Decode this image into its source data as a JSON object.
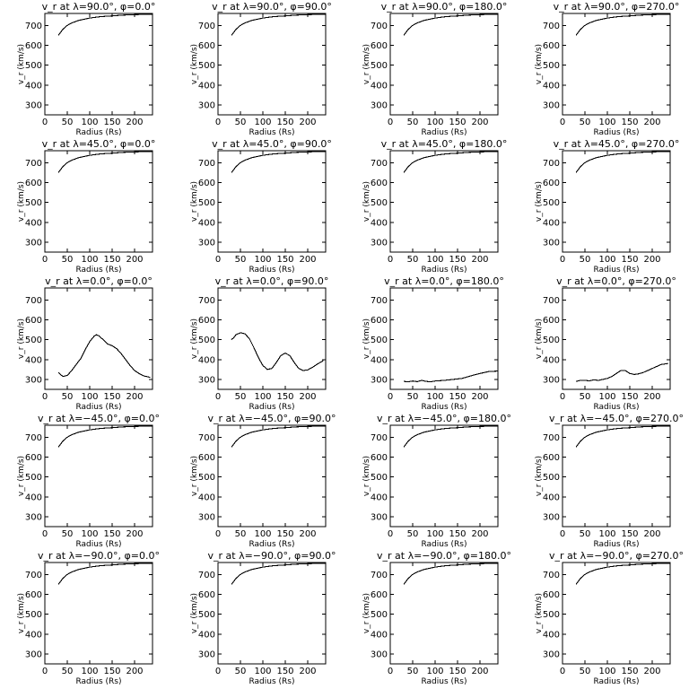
{
  "chart_data": [
    {
      "type": "line",
      "title": "v_r at λ=90.0°, φ=0.0°",
      "xlabel": "Radius (Rs)",
      "ylabel": "v_r (km/s)",
      "xlim": [
        0,
        240
      ],
      "ylim": [
        250,
        760
      ],
      "xticks": [
        0,
        50,
        100,
        150,
        200
      ],
      "yticks": [
        300,
        400,
        500,
        600,
        700
      ],
      "grid": false,
      "x": [
        30,
        40,
        50,
        60,
        75,
        100,
        125,
        150,
        175,
        200,
        240
      ],
      "y": [
        650,
        680,
        700,
        712,
        725,
        737,
        744,
        748,
        752,
        754,
        756
      ]
    },
    {
      "type": "line",
      "title": "v_r at λ=90.0°, φ=90.0°",
      "xlabel": "Radius (Rs)",
      "ylabel": "v_r (km/s)",
      "xlim": [
        0,
        240
      ],
      "ylim": [
        250,
        760
      ],
      "xticks": [
        0,
        50,
        100,
        150,
        200
      ],
      "yticks": [
        300,
        400,
        500,
        600,
        700
      ],
      "grid": false,
      "x": [
        30,
        40,
        50,
        60,
        75,
        100,
        125,
        150,
        175,
        200,
        240
      ],
      "y": [
        650,
        680,
        700,
        712,
        725,
        737,
        744,
        748,
        752,
        754,
        756
      ]
    },
    {
      "type": "line",
      "title": "v_r at λ=90.0°, φ=180.0°",
      "xlabel": "Radius (Rs)",
      "ylabel": "v_r (km/s)",
      "xlim": [
        0,
        240
      ],
      "ylim": [
        250,
        760
      ],
      "xticks": [
        0,
        50,
        100,
        150,
        200
      ],
      "yticks": [
        300,
        400,
        500,
        600,
        700
      ],
      "grid": false,
      "x": [
        30,
        40,
        50,
        60,
        75,
        100,
        125,
        150,
        175,
        200,
        240
      ],
      "y": [
        650,
        680,
        700,
        712,
        725,
        737,
        744,
        748,
        752,
        754,
        756
      ]
    },
    {
      "type": "line",
      "title": "v_r at λ=90.0°, φ=270.0°",
      "xlabel": "Radius (Rs)",
      "ylabel": "v_r (km/s)",
      "xlim": [
        0,
        240
      ],
      "ylim": [
        250,
        760
      ],
      "xticks": [
        0,
        50,
        100,
        150,
        200
      ],
      "yticks": [
        300,
        400,
        500,
        600,
        700
      ],
      "grid": false,
      "x": [
        30,
        40,
        50,
        60,
        75,
        100,
        125,
        150,
        175,
        200,
        240
      ],
      "y": [
        650,
        680,
        700,
        712,
        725,
        737,
        744,
        748,
        752,
        754,
        756
      ]
    },
    {
      "type": "line",
      "title": "v_r at λ=45.0°, φ=0.0°",
      "xlabel": "Radius (Rs)",
      "ylabel": "v_r (km/s)",
      "xlim": [
        0,
        240
      ],
      "ylim": [
        250,
        760
      ],
      "xticks": [
        0,
        50,
        100,
        150,
        200
      ],
      "yticks": [
        300,
        400,
        500,
        600,
        700
      ],
      "grid": false,
      "x": [
        30,
        40,
        50,
        60,
        75,
        100,
        125,
        150,
        175,
        200,
        240
      ],
      "y": [
        650,
        680,
        700,
        712,
        725,
        737,
        744,
        748,
        752,
        754,
        756
      ]
    },
    {
      "type": "line",
      "title": "v_r at λ=45.0°, φ=90.0°",
      "xlabel": "Radius (Rs)",
      "ylabel": "v_r (km/s)",
      "xlim": [
        0,
        240
      ],
      "ylim": [
        250,
        760
      ],
      "xticks": [
        0,
        50,
        100,
        150,
        200
      ],
      "yticks": [
        300,
        400,
        500,
        600,
        700
      ],
      "grid": false,
      "x": [
        30,
        40,
        50,
        60,
        75,
        100,
        125,
        150,
        175,
        200,
        240
      ],
      "y": [
        650,
        680,
        700,
        712,
        725,
        737,
        744,
        748,
        752,
        754,
        756
      ]
    },
    {
      "type": "line",
      "title": "v_r at λ=45.0°, φ=180.0°",
      "xlabel": "Radius (Rs)",
      "ylabel": "v_r (km/s)",
      "xlim": [
        0,
        240
      ],
      "ylim": [
        250,
        760
      ],
      "xticks": [
        0,
        50,
        100,
        150,
        200
      ],
      "yticks": [
        300,
        400,
        500,
        600,
        700
      ],
      "grid": false,
      "x": [
        30,
        40,
        50,
        60,
        75,
        100,
        125,
        150,
        175,
        200,
        240
      ],
      "y": [
        650,
        680,
        700,
        712,
        725,
        737,
        744,
        748,
        752,
        754,
        756
      ]
    },
    {
      "type": "line",
      "title": "v_r at λ=45.0°, φ=270.0°",
      "xlabel": "Radius (Rs)",
      "ylabel": "v_r (km/s)",
      "xlim": [
        0,
        240
      ],
      "ylim": [
        250,
        760
      ],
      "xticks": [
        0,
        50,
        100,
        150,
        200
      ],
      "yticks": [
        300,
        400,
        500,
        600,
        700
      ],
      "grid": false,
      "x": [
        30,
        40,
        50,
        60,
        75,
        100,
        125,
        150,
        175,
        200,
        240
      ],
      "y": [
        650,
        680,
        700,
        712,
        725,
        737,
        744,
        748,
        752,
        754,
        756
      ]
    },
    {
      "type": "line",
      "title": "v_r at λ=0.0°, φ=0.0°",
      "xlabel": "Radius (Rs)",
      "ylabel": "v_r (km/s)",
      "xlim": [
        0,
        240
      ],
      "ylim": [
        250,
        760
      ],
      "xticks": [
        0,
        50,
        100,
        150,
        200
      ],
      "yticks": [
        300,
        400,
        500,
        600,
        700
      ],
      "grid": false,
      "x": [
        30,
        40,
        50,
        60,
        70,
        80,
        90,
        100,
        110,
        115,
        120,
        130,
        140,
        150,
        160,
        170,
        180,
        190,
        200,
        210,
        220,
        235
      ],
      "y": [
        335,
        315,
        320,
        345,
        375,
        405,
        450,
        490,
        518,
        525,
        520,
        500,
        478,
        470,
        455,
        430,
        400,
        370,
        345,
        330,
        318,
        310
      ]
    },
    {
      "type": "line",
      "title": "v_r at λ=0.0°, φ=90.0°",
      "xlabel": "Radius (Rs)",
      "ylabel": "v_r (km/s)",
      "xlim": [
        0,
        240
      ],
      "ylim": [
        250,
        760
      ],
      "xticks": [
        0,
        50,
        100,
        150,
        200
      ],
      "yticks": [
        300,
        400,
        500,
        600,
        700
      ],
      "grid": false,
      "x": [
        30,
        35,
        40,
        50,
        60,
        70,
        80,
        90,
        100,
        110,
        120,
        130,
        140,
        150,
        160,
        170,
        180,
        190,
        200,
        210,
        220,
        235
      ],
      "y": [
        500,
        510,
        525,
        535,
        530,
        505,
        460,
        410,
        370,
        350,
        355,
        385,
        420,
        432,
        420,
        385,
        355,
        345,
        348,
        360,
        375,
        395
      ]
    },
    {
      "type": "line",
      "title": "v_r at λ=0.0°, φ=180.0°",
      "xlabel": "Radius (Rs)",
      "ylabel": "v_r (km/s)",
      "xlim": [
        0,
        240
      ],
      "ylim": [
        250,
        760
      ],
      "xticks": [
        0,
        50,
        100,
        150,
        200
      ],
      "yticks": [
        300,
        400,
        500,
        600,
        700
      ],
      "grid": false,
      "x": [
        30,
        40,
        50,
        60,
        70,
        80,
        90,
        100,
        120,
        140,
        160,
        180,
        200,
        220,
        240
      ],
      "y": [
        290,
        288,
        292,
        289,
        295,
        290,
        288,
        292,
        295,
        300,
        305,
        318,
        330,
        340,
        342
      ]
    },
    {
      "type": "line",
      "title": "v_r at λ=0.0°, φ=270.0°",
      "xlabel": "Radius (Rs)",
      "ylabel": "v_r (km/s)",
      "xlim": [
        0,
        240
      ],
      "ylim": [
        250,
        760
      ],
      "xticks": [
        0,
        50,
        100,
        150,
        200
      ],
      "yticks": [
        300,
        400,
        500,
        600,
        700
      ],
      "grid": false,
      "x": [
        30,
        40,
        50,
        60,
        70,
        80,
        90,
        100,
        110,
        120,
        130,
        140,
        150,
        160,
        170,
        180,
        190,
        200,
        210,
        220,
        235
      ],
      "y": [
        290,
        295,
        295,
        293,
        298,
        295,
        300,
        305,
        315,
        330,
        345,
        345,
        330,
        325,
        328,
        335,
        345,
        355,
        365,
        375,
        380
      ]
    },
    {
      "type": "line",
      "title": "v_r at λ=−45.0°, φ=0.0°",
      "xlabel": "Radius (Rs)",
      "ylabel": "v_r (km/s)",
      "xlim": [
        0,
        240
      ],
      "ylim": [
        250,
        760
      ],
      "xticks": [
        0,
        50,
        100,
        150,
        200
      ],
      "yticks": [
        300,
        400,
        500,
        600,
        700
      ],
      "grid": false,
      "x": [
        30,
        40,
        50,
        60,
        75,
        100,
        125,
        150,
        175,
        200,
        240
      ],
      "y": [
        650,
        680,
        700,
        712,
        725,
        737,
        744,
        748,
        752,
        754,
        756
      ]
    },
    {
      "type": "line",
      "title": "v_r at λ=−45.0°, φ=90.0°",
      "xlabel": "Radius (Rs)",
      "ylabel": "v_r (km/s)",
      "xlim": [
        0,
        240
      ],
      "ylim": [
        250,
        760
      ],
      "xticks": [
        0,
        50,
        100,
        150,
        200
      ],
      "yticks": [
        300,
        400,
        500,
        600,
        700
      ],
      "grid": false,
      "x": [
        30,
        40,
        50,
        60,
        75,
        100,
        125,
        150,
        175,
        200,
        240
      ],
      "y": [
        650,
        680,
        700,
        712,
        725,
        737,
        744,
        748,
        752,
        754,
        756
      ]
    },
    {
      "type": "line",
      "title": "v_r at λ=−45.0°, φ=180.0°",
      "xlabel": "Radius (Rs)",
      "ylabel": "v_r (km/s)",
      "xlim": [
        0,
        240
      ],
      "ylim": [
        250,
        760
      ],
      "xticks": [
        0,
        50,
        100,
        150,
        200
      ],
      "yticks": [
        300,
        400,
        500,
        600,
        700
      ],
      "grid": false,
      "x": [
        30,
        40,
        50,
        60,
        75,
        100,
        125,
        150,
        175,
        200,
        240
      ],
      "y": [
        650,
        680,
        700,
        712,
        725,
        737,
        744,
        748,
        752,
        754,
        756
      ]
    },
    {
      "type": "line",
      "title": "v_r at λ=−45.0°, φ=270.0°",
      "xlabel": "Radius (Rs)",
      "ylabel": "v_r (km/s)",
      "xlim": [
        0,
        240
      ],
      "ylim": [
        250,
        760
      ],
      "xticks": [
        0,
        50,
        100,
        150,
        200
      ],
      "yticks": [
        300,
        400,
        500,
        600,
        700
      ],
      "grid": false,
      "x": [
        30,
        40,
        50,
        60,
        75,
        100,
        125,
        150,
        175,
        200,
        240
      ],
      "y": [
        650,
        680,
        700,
        712,
        725,
        737,
        744,
        748,
        752,
        754,
        756
      ]
    },
    {
      "type": "line",
      "title": "v_r at λ=−90.0°, φ=0.0°",
      "xlabel": "Radius (Rs)",
      "ylabel": "v_r (km/s)",
      "xlim": [
        0,
        240
      ],
      "ylim": [
        250,
        760
      ],
      "xticks": [
        0,
        50,
        100,
        150,
        200
      ],
      "yticks": [
        300,
        400,
        500,
        600,
        700
      ],
      "grid": false,
      "x": [
        30,
        40,
        50,
        60,
        75,
        100,
        125,
        150,
        175,
        200,
        240
      ],
      "y": [
        650,
        680,
        700,
        712,
        725,
        737,
        744,
        748,
        752,
        754,
        756
      ]
    },
    {
      "type": "line",
      "title": "v_r at λ=−90.0°, φ=90.0°",
      "xlabel": "Radius (Rs)",
      "ylabel": "v_r (km/s)",
      "xlim": [
        0,
        240
      ],
      "ylim": [
        250,
        760
      ],
      "xticks": [
        0,
        50,
        100,
        150,
        200
      ],
      "yticks": [
        300,
        400,
        500,
        600,
        700
      ],
      "grid": false,
      "x": [
        30,
        40,
        50,
        60,
        75,
        100,
        125,
        150,
        175,
        200,
        240
      ],
      "y": [
        650,
        680,
        700,
        712,
        725,
        737,
        744,
        748,
        752,
        754,
        756
      ]
    },
    {
      "type": "line",
      "title": "v_r at λ=−90.0°, φ=180.0°",
      "xlabel": "Radius (Rs)",
      "ylabel": "v_r (km/s)",
      "xlim": [
        0,
        240
      ],
      "ylim": [
        250,
        760
      ],
      "xticks": [
        0,
        50,
        100,
        150,
        200
      ],
      "yticks": [
        300,
        400,
        500,
        600,
        700
      ],
      "grid": false,
      "x": [
        30,
        40,
        50,
        60,
        75,
        100,
        125,
        150,
        175,
        200,
        240
      ],
      "y": [
        650,
        680,
        700,
        712,
        725,
        737,
        744,
        748,
        752,
        754,
        756
      ]
    },
    {
      "type": "line",
      "title": "v_r at λ=−90.0°, φ=270.0°",
      "xlabel": "Radius (Rs)",
      "ylabel": "v_r (km/s)",
      "xlim": [
        0,
        240
      ],
      "ylim": [
        250,
        760
      ],
      "xticks": [
        0,
        50,
        100,
        150,
        200
      ],
      "yticks": [
        300,
        400,
        500,
        600,
        700
      ],
      "grid": false,
      "x": [
        30,
        40,
        50,
        60,
        75,
        100,
        125,
        150,
        175,
        200,
        240
      ],
      "y": [
        650,
        680,
        700,
        712,
        725,
        737,
        744,
        748,
        752,
        754,
        756
      ]
    }
  ]
}
